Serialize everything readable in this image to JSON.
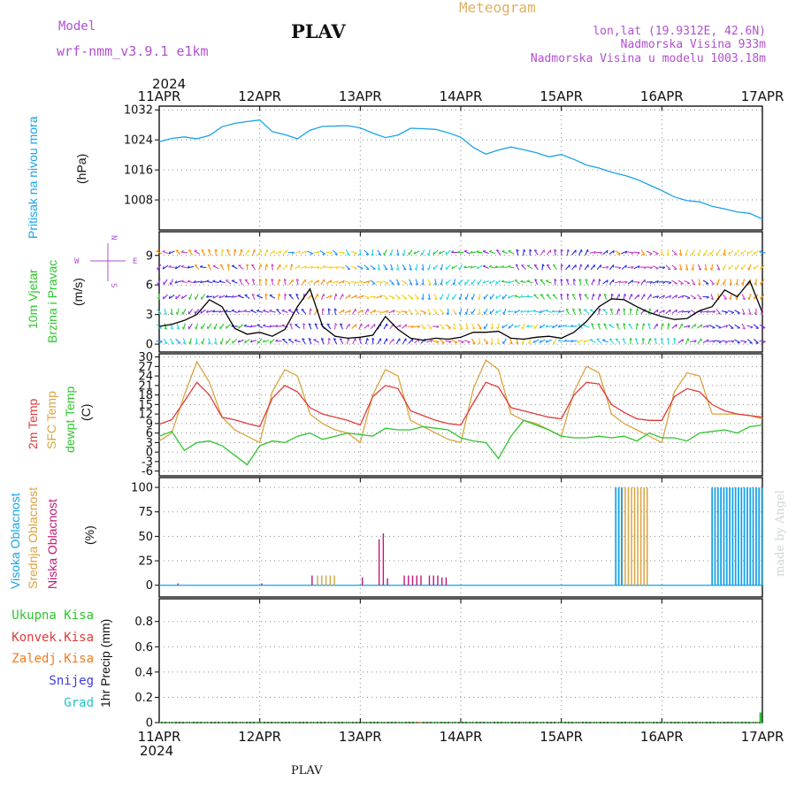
{
  "header": {
    "model_label": "Model",
    "model_name": "wrf-nmm_v3.9.1 e1km",
    "station": "PLAV",
    "title": "Meteogram",
    "coords": "lon,lat (19.9312E, 42.6N)",
    "elevation": "Nadmorska Visina 933m",
    "model_elevation": "Nadmorska Visina u modelu 1003.18m",
    "footer_station": "PLAV",
    "watermark": "made by Angel"
  },
  "colors": {
    "pressure": "#1aa3e6",
    "temp_2m": "#e03a3a",
    "temp_sfc": "#d9a441",
    "dewpoint": "#2ec52e",
    "cloud_high": "#1aa3e6",
    "cloud_mid": "#d9a441",
    "cloud_low": "#c0177a",
    "precip_total": "#2ec52e",
    "precip_conv": "#e03a3a",
    "precip_frozen": "#f07b1f",
    "snow": "#3a3ae0",
    "graupel": "#21c2c2",
    "wind_speed": "#000000",
    "model_text": "#b050d0",
    "title_text": "#e0b060"
  },
  "time_axis": {
    "year": "2024",
    "days": [
      "11APR",
      "12APR",
      "13APR",
      "14APR",
      "15APR",
      "16APR",
      "17APR"
    ],
    "range_hours": [
      0,
      144
    ]
  },
  "panels": {
    "pressure": {
      "ylabel": "Pritisak na nivou mora",
      "unit": "(hPa)",
      "ticks": [
        "1032",
        "1024",
        "1016",
        "1008"
      ]
    },
    "wind": {
      "ylabel1": "10m Vjetar",
      "ylabel2": "Brzina i Pravac",
      "unit": "(m/s)",
      "ticks": [
        "9",
        "6",
        "3",
        "0"
      ],
      "compass_n": "N",
      "compass_w": "W",
      "compass_e": "E",
      "compass_s": "S"
    },
    "temperature": {
      "ylabel1": "2m Temp",
      "ylabel2": "SFC Temp",
      "ylabel3": "dewpt Temp",
      "unit": "(C)",
      "ticks": [
        "30",
        "27",
        "24",
        "21",
        "18",
        "15",
        "12",
        "9",
        "6",
        "3",
        "0",
        "-3",
        "-6"
      ]
    },
    "cloud": {
      "ylabel1": "Visoka Oblacnost",
      "ylabel2": "Srednja Oblacnost",
      "ylabel3": "Niska Oblacnost",
      "unit": "(%)",
      "ticks": [
        "100",
        "75",
        "50",
        "25",
        "0"
      ]
    },
    "precip": {
      "ylabel": "1hr Precip (mm)",
      "ticks": [
        "0.8",
        "0.6",
        "0.4",
        "0.2",
        "0"
      ],
      "legend": [
        "Ukupna Kisa",
        "Konvek.Kisa",
        "Zaledj.Kisa",
        "Snijeg",
        "Grad"
      ]
    }
  },
  "chart_data": [
    {
      "type": "line",
      "title": "",
      "ylabel": "Pritisak na nivou mora (hPa)",
      "ylim": [
        1000,
        1033
      ],
      "x_hours": [
        0,
        3,
        6,
        9,
        12,
        15,
        18,
        21,
        24,
        27,
        30,
        33,
        36,
        39,
        42,
        45,
        48,
        51,
        54,
        57,
        60,
        63,
        66,
        69,
        72,
        75,
        78,
        81,
        84,
        87,
        90,
        93,
        96,
        99,
        102,
        105,
        108,
        111,
        114,
        117,
        120,
        123,
        126,
        129,
        132,
        135,
        138,
        141,
        144
      ],
      "series": [
        {
          "name": "Pritisak na nivou mora",
          "values": [
            1023.5,
            1024.4,
            1024.8,
            1024.3,
            1025.2,
            1027.5,
            1028.4,
            1028.9,
            1029.3,
            1026.2,
            1025.4,
            1024.3,
            1026.6,
            1027.6,
            1027.7,
            1027.8,
            1027.2,
            1025.8,
            1024.6,
            1025.3,
            1027.1,
            1027.0,
            1026.8,
            1025.9,
            1024.7,
            1022.0,
            1020.2,
            1021.3,
            1022.1,
            1021.4,
            1020.6,
            1019.5,
            1020.1,
            1018.8,
            1017.3,
            1016.5,
            1015.4,
            1014.6,
            1013.5,
            1012.0,
            1010.5,
            1008.8,
            1007.8,
            1007.5,
            1006.3,
            1005.6,
            1004.8,
            1004.4,
            1002.9
          ]
        }
      ]
    },
    {
      "type": "line",
      "title": "",
      "ylabel": "10m Vjetar Brzina i Pravac (m/s)",
      "ylim": [
        -0.8,
        11.4
      ],
      "x_hours": [
        0,
        3,
        6,
        9,
        12,
        15,
        18,
        21,
        24,
        27,
        30,
        33,
        36,
        39,
        42,
        45,
        48,
        51,
        54,
        57,
        60,
        63,
        66,
        69,
        72,
        75,
        78,
        81,
        84,
        87,
        90,
        93,
        96,
        99,
        102,
        105,
        108,
        111,
        114,
        117,
        120,
        123,
        126,
        129,
        132,
        135,
        138,
        141,
        144
      ],
      "series": [
        {
          "name": "10m Vjetar",
          "values": [
            1.8,
            2.0,
            2.4,
            3.0,
            4.5,
            3.8,
            1.6,
            1.0,
            1.2,
            0.8,
            1.5,
            3.8,
            5.6,
            1.8,
            0.8,
            0.6,
            0.7,
            0.9,
            2.8,
            1.5,
            0.6,
            0.4,
            0.6,
            0.5,
            0.7,
            1.2,
            1.2,
            1.3,
            0.6,
            0.5,
            0.7,
            0.8,
            0.6,
            1.2,
            2.3,
            3.8,
            4.6,
            4.5,
            3.8,
            3.2,
            2.8,
            2.5,
            2.6,
            3.4,
            3.8,
            5.5,
            4.8,
            6.4,
            3.2
          ]
        }
      ],
      "wind_direction_colors": [
        "#1a90ff",
        "#22d6d6",
        "#2ec52e",
        "#8a2be2",
        "#2a2ae0",
        "#c040c0",
        "#ff8c00",
        "#f0d020"
      ]
    },
    {
      "type": "line",
      "title": "",
      "ylabel": "Temp (C)",
      "ylim": [
        -7.5,
        31
      ],
      "x_hours": [
        0,
        3,
        6,
        9,
        12,
        15,
        18,
        21,
        24,
        27,
        30,
        33,
        36,
        39,
        42,
        45,
        48,
        51,
        54,
        57,
        60,
        63,
        66,
        69,
        72,
        75,
        78,
        81,
        84,
        87,
        90,
        93,
        96,
        99,
        102,
        105,
        108,
        111,
        114,
        117,
        120,
        123,
        126,
        129,
        132,
        135,
        138,
        141,
        144
      ],
      "series": [
        {
          "name": "2m Temp",
          "values": [
            8.8,
            10.2,
            16.0,
            22.0,
            18.0,
            11.0,
            10.2,
            9.0,
            8.0,
            17.0,
            21.0,
            19.0,
            14.0,
            12.0,
            11.0,
            10.0,
            8.5,
            17.5,
            21.0,
            20.0,
            13.0,
            11.5,
            10.0,
            9.0,
            8.5,
            15.5,
            22.0,
            20.5,
            14.0,
            13.0,
            12.0,
            11.0,
            10.5,
            18.0,
            22.0,
            21.5,
            15.0,
            12.5,
            10.5,
            10.0,
            10.0,
            17.5,
            20.0,
            19.0,
            15.0,
            13.0,
            12.0,
            11.5,
            11.0
          ]
        },
        {
          "name": "SFC Temp",
          "values": [
            3.5,
            6.0,
            18.0,
            28.5,
            22.0,
            11.0,
            7.0,
            5.0,
            3.0,
            19.0,
            26.0,
            24.0,
            12.0,
            9.0,
            7.0,
            6.0,
            3.0,
            18.0,
            26.0,
            24.0,
            10.0,
            8.0,
            6.0,
            4.0,
            3.0,
            20.0,
            29.0,
            26.0,
            12.0,
            10.0,
            9.0,
            7.0,
            5.0,
            19.0,
            27.0,
            25.0,
            12.0,
            9.0,
            7.0,
            5.0,
            3.0,
            19.0,
            25.0,
            24.0,
            12.0,
            12.0,
            12.0,
            11.5,
            10.5
          ]
        },
        {
          "name": "dewpt Temp",
          "values": [
            5.0,
            6.5,
            0.5,
            3.0,
            3.5,
            2.0,
            -1.0,
            -4.0,
            2.0,
            3.5,
            3.0,
            5.0,
            6.0,
            4.0,
            5.0,
            6.0,
            5.5,
            5.0,
            7.5,
            7.0,
            7.0,
            8.0,
            7.5,
            7.0,
            4.5,
            3.5,
            3.0,
            -2.0,
            5.0,
            10.0,
            8.5,
            7.0,
            5.0,
            4.5,
            4.5,
            5.0,
            4.5,
            5.0,
            3.5,
            6.0,
            4.5,
            4.5,
            3.5,
            6.0,
            6.5,
            7.0,
            6.0,
            8.0,
            8.5
          ]
        }
      ]
    },
    {
      "type": "bar",
      "title": "",
      "ylabel": "Oblacnost (%)",
      "ylim": [
        0,
        100
      ],
      "series": [
        {
          "name": "Visoka Oblacnost",
          "x_hours": [
            88.5,
            89.0,
            89.5,
            90.0,
            90.5,
            91.5,
            92.5,
            93.5,
            94.5,
            95.5,
            96.5,
            97.5,
            98.5,
            99.5,
            100.5,
            101.5,
            102.5,
            103.5,
            104.5,
            105.5,
            106.5,
            107.5,
            108.5,
            109.5,
            110.5,
            111.5,
            112.5,
            113.5,
            114.5,
            115.5,
            116.5,
            117.5,
            118.5,
            119.5,
            120.5,
            121.5,
            122.5,
            123.5,
            124.5,
            125.5,
            126.5,
            127.5,
            128.5,
            129.5,
            130.5,
            131.5,
            132.5,
            133.5,
            134.5,
            135.5,
            136.5,
            137.5,
            138.5,
            139.5,
            140.5,
            141.5,
            142.5,
            143.5
          ],
          "values": [
            0,
            0,
            0,
            0,
            0,
            0,
            0,
            0,
            0,
            0,
            0,
            0,
            0,
            0,
            0,
            0,
            0,
            0,
            0,
            0,
            0,
            0,
            0,
            0,
            0,
            0,
            0,
            0,
            0,
            0,
            0,
            0,
            0,
            0,
            0,
            0,
            0,
            0,
            0,
            0,
            0,
            0,
            0,
            0,
            0,
            0,
            0,
            0,
            0,
            0,
            0,
            0,
            0,
            0,
            0,
            0,
            0,
            0
          ]
        },
        {
          "name": "Srednja Oblacnost",
          "x_hours": [
            37.5,
            38.5,
            39.5,
            40.5,
            41.5
          ],
          "values": [
            10,
            10,
            10,
            10,
            10
          ]
        },
        {
          "name": "Niska Oblacnost",
          "x_hours": [
            4.5,
            24.5,
            36.5,
            48.5,
            52.5,
            53.5,
            54.5,
            58.5,
            59.5,
            60.5,
            61.5,
            62.5,
            64.5,
            65.5,
            66.5,
            67.5,
            68.5
          ],
          "values": [
            2,
            2,
            10,
            8,
            47,
            53,
            7,
            10,
            10,
            10,
            10,
            10,
            10,
            10,
            10,
            8,
            8
          ]
        }
      ],
      "high_cloud_values": [
        {
          "from_hour": 109,
          "to_hour": 111,
          "value": 100
        },
        {
          "from_hour": 132,
          "to_hour": 144,
          "value": 100
        }
      ],
      "mid_cloud_values": [
        {
          "from_hour": 109,
          "to_hour": 117,
          "value": 100
        }
      ]
    },
    {
      "type": "bar",
      "title": "",
      "ylabel": "1hr Precip (mm)",
      "ylim": [
        0,
        1.0
      ],
      "series": [
        {
          "name": "Ukupna Kisa",
          "x_hours": [
            143.6
          ],
          "values": [
            0.08
          ]
        },
        {
          "name": "Zaledj.Kisa",
          "x_hours": [
            62.0
          ],
          "values": [
            0.005
          ]
        }
      ]
    }
  ]
}
